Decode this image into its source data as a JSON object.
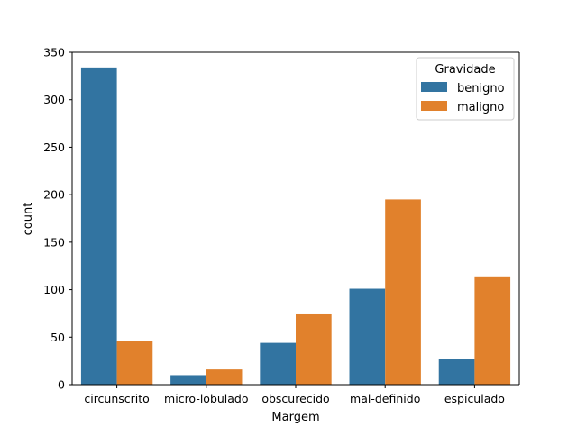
{
  "chart_data": {
    "type": "bar",
    "title": "",
    "xlabel": "Margem",
    "ylabel": "count",
    "categories": [
      "circunscrito",
      "micro-lobulado",
      "obscurecido",
      "mal-definido",
      "espiculado"
    ],
    "series": [
      {
        "name": "benigno",
        "values": [
          334,
          10,
          44,
          101,
          27
        ],
        "color": "#3274a1"
      },
      {
        "name": "maligno",
        "values": [
          46,
          16,
          74,
          195,
          114
        ],
        "color": "#e1812c"
      }
    ],
    "ylim": [
      0,
      350
    ],
    "yticks": [
      0,
      50,
      100,
      150,
      200,
      250,
      300,
      350
    ],
    "grid": false,
    "legend": {
      "title": "Gravidade",
      "placement": "top-right"
    }
  }
}
